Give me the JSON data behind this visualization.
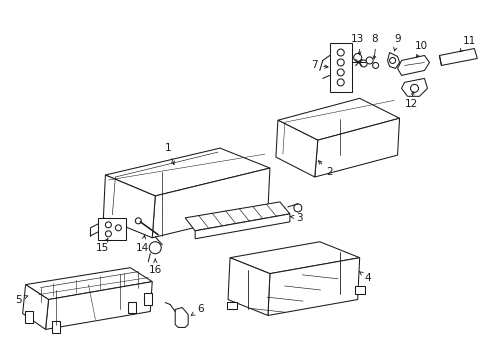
{
  "background_color": "#ffffff",
  "line_color": "#1a1a1a",
  "fig_width": 4.89,
  "fig_height": 3.6,
  "dpi": 100,
  "font_size": 7.5,
  "lw": 0.75
}
